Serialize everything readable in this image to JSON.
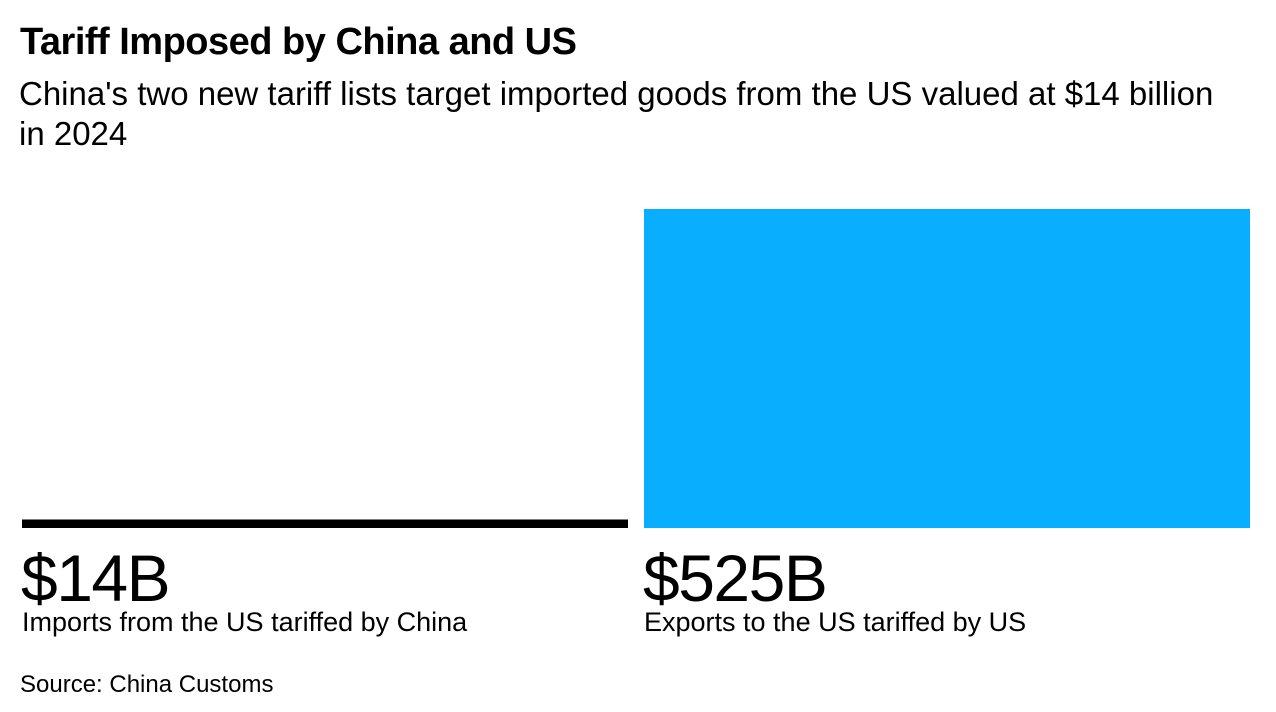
{
  "title": "Tariff Imposed by China and US",
  "subtitle": "China's two new tariff lists target imported goods from the US valued at $14 billion in 2024",
  "source": "Source: China Customs",
  "colors": {
    "small_bar": "#000000",
    "large_bar": "#0aaeff"
  },
  "chart_data": {
    "type": "bar",
    "categories": [
      "Imports from the US tariffed by China",
      "Exports to the US tariffed by US"
    ],
    "values": [
      14,
      525
    ],
    "value_labels": [
      "$14B",
      "$525B"
    ],
    "unit": "billion USD",
    "title": "Tariff Imposed by China and US",
    "subtitle": "China's two new tariff lists target imported goods from the US valued at $14 billion in 2024",
    "xlabel": "",
    "ylabel": "",
    "ylim": [
      0,
      525
    ],
    "grid": false,
    "legend": "none"
  }
}
